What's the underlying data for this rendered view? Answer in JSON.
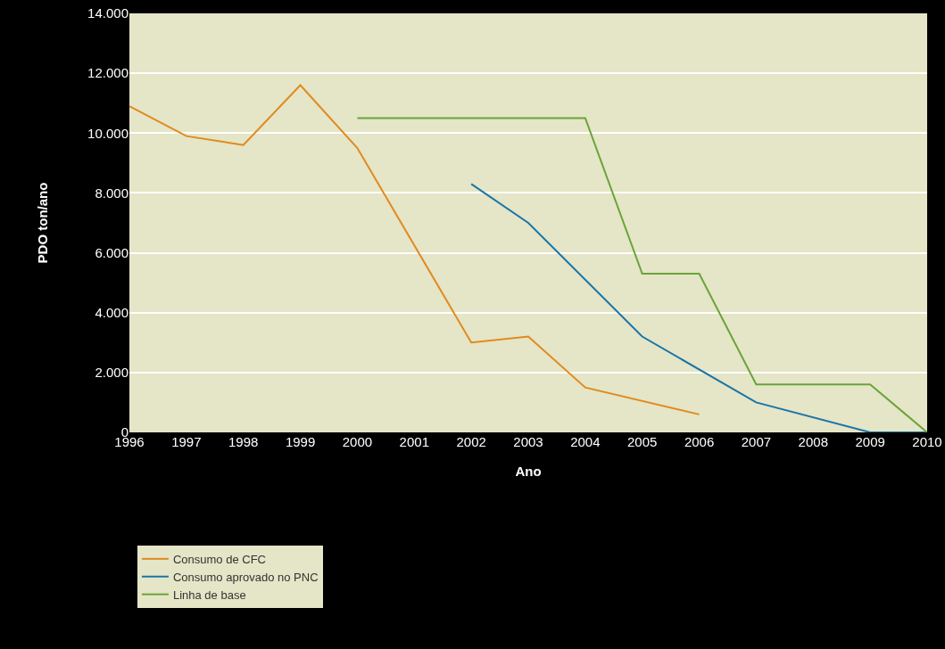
{
  "chart_data": {
    "type": "line",
    "xlabel": "Ano",
    "ylabel": "PDO ton/ano",
    "xlim": [
      1996,
      2010
    ],
    "xticks": [
      1996,
      1997,
      1998,
      1999,
      2000,
      2001,
      2002,
      2003,
      2004,
      2005,
      2006,
      2007,
      2008,
      2009,
      2010
    ],
    "ylim": [
      0,
      14000
    ],
    "yticks": [
      {
        "value": 0,
        "label": "0"
      },
      {
        "value": 2000,
        "label": "2.000"
      },
      {
        "value": 4000,
        "label": "4.000"
      },
      {
        "value": 6000,
        "label": "6.000"
      },
      {
        "value": 8000,
        "label": "8.000"
      },
      {
        "value": 10000,
        "label": "10.000"
      },
      {
        "value": 12000,
        "label": "12.000"
      },
      {
        "value": 14000,
        "label": "14.000"
      }
    ],
    "grid": "y",
    "legend": "bottom",
    "marker": "none",
    "line_style": "solid",
    "series": [
      {
        "name": "Consumo de CFC",
        "color": "#e08a1e",
        "x": [
          1996,
          1997,
          1998,
          1999,
          2000,
          2002,
          2003,
          2004,
          2006
        ],
        "values": [
          10900,
          9900,
          9600,
          11600,
          9500,
          3000,
          3200,
          1500,
          600
        ]
      },
      {
        "name": "Consumo aprovado no PNC",
        "color": "#1a75a8",
        "x": [
          2002,
          2003,
          2005,
          2007,
          2009,
          2010
        ],
        "values": [
          8300,
          7000,
          3200,
          1000,
          0,
          0
        ]
      },
      {
        "name": "Linha de base",
        "color": "#6aa43a",
        "x": [
          2000,
          2004,
          2005,
          2006,
          2007,
          2009,
          2010
        ],
        "values": [
          10500,
          10500,
          5300,
          5300,
          1600,
          1600,
          0
        ]
      }
    ]
  }
}
